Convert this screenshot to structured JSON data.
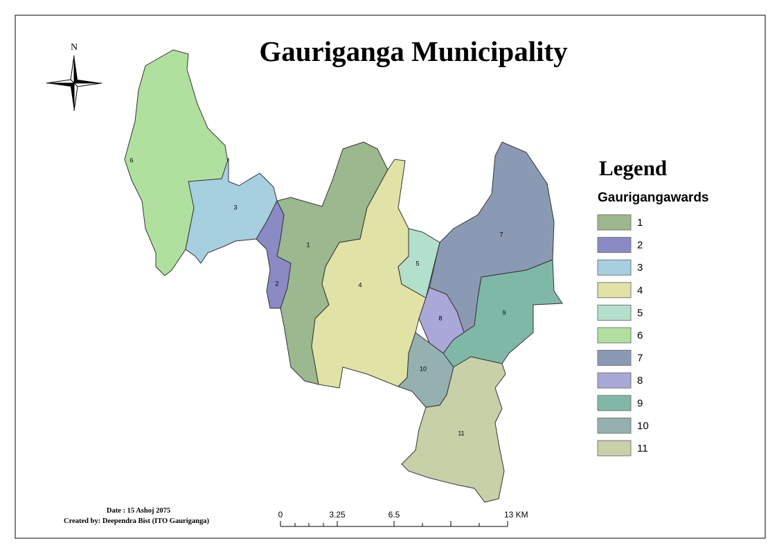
{
  "title": "Gauriganga Municipality",
  "north_label": "N",
  "legend": {
    "title": "Legend",
    "layer": "Gaurigangawards",
    "items": [
      {
        "label": "1",
        "color": "#9cb88e"
      },
      {
        "label": "2",
        "color": "#8a8ac4"
      },
      {
        "label": "3",
        "color": "#a6cfe0"
      },
      {
        "label": "4",
        "color": "#e0e2a6"
      },
      {
        "label": "5",
        "color": "#b3e0cc"
      },
      {
        "label": "6",
        "color": "#b0e09e"
      },
      {
        "label": "7",
        "color": "#8a9ab4"
      },
      {
        "label": "8",
        "color": "#aaa8d8"
      },
      {
        "label": "9",
        "color": "#80b8a8"
      },
      {
        "label": "10",
        "color": "#94b0b0"
      },
      {
        "label": "11",
        "color": "#c8d0a8"
      }
    ]
  },
  "scale_bar": {
    "labels": [
      "0",
      "3.25",
      "6.5",
      "13 KM"
    ]
  },
  "footer": {
    "date": "Date : 15 Ashoj 2075",
    "created_by": "Created by: Deependra Bist (ITO Gauriganga)"
  }
}
